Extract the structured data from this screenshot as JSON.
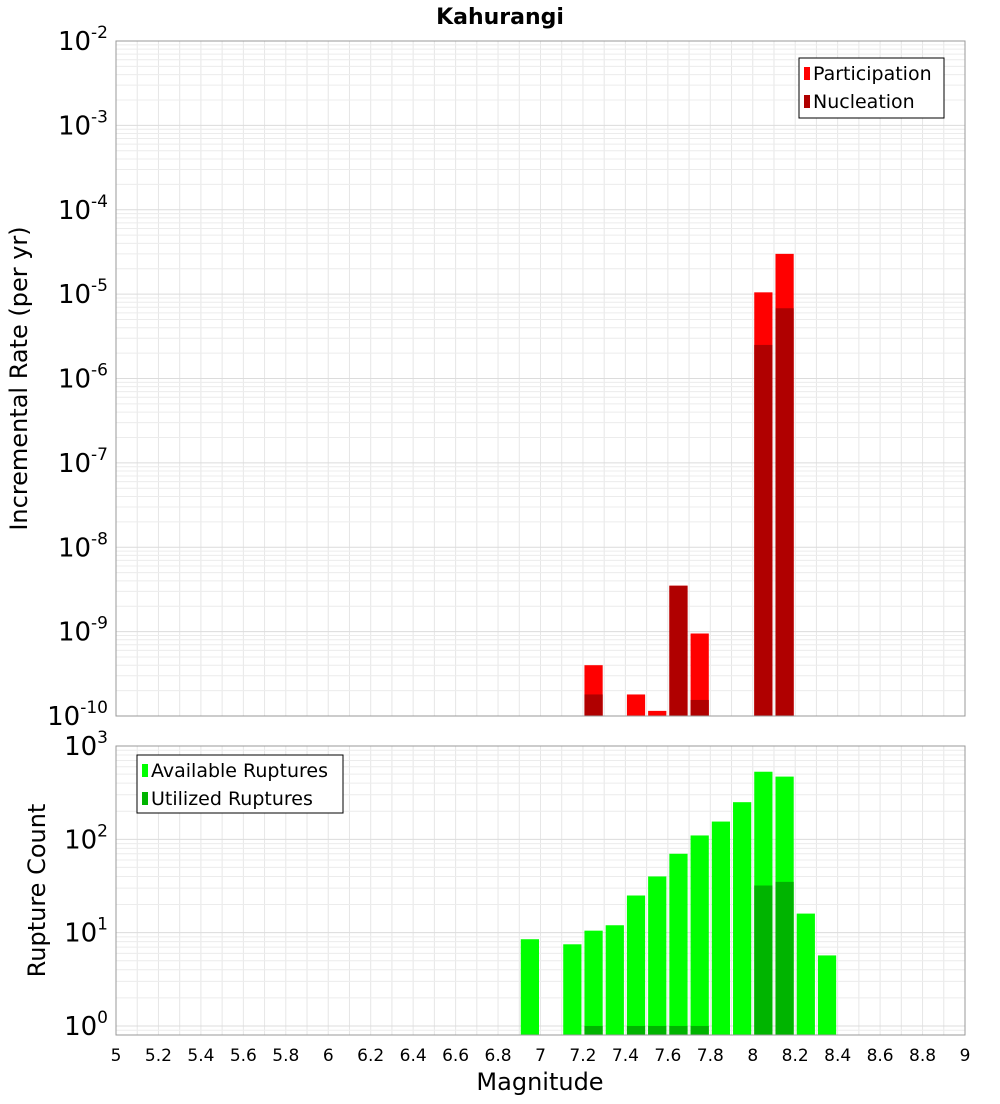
{
  "chart_data": [
    {
      "type": "bar",
      "title": "Kahurangi",
      "ylabel": "Incremental Rate (per yr)",
      "xlabel": "",
      "yscale": "log",
      "ylim": [
        1e-10,
        0.01
      ],
      "xlim": [
        5,
        9
      ],
      "grid": true,
      "legend": "top-right",
      "y_ticks": [
        {
          "base": "10",
          "exp": "-10",
          "v": 1e-10
        },
        {
          "base": "10",
          "exp": "-9",
          "v": 1e-09
        },
        {
          "base": "10",
          "exp": "-8",
          "v": 1e-08
        },
        {
          "base": "10",
          "exp": "-7",
          "v": 1e-07
        },
        {
          "base": "10",
          "exp": "-6",
          "v": 1e-06
        },
        {
          "base": "10",
          "exp": "-5",
          "v": 1e-05
        },
        {
          "base": "10",
          "exp": "-4",
          "v": 0.0001
        },
        {
          "base": "10",
          "exp": "-3",
          "v": 0.001
        },
        {
          "base": "10",
          "exp": "-2",
          "v": 0.01
        }
      ],
      "series": [
        {
          "name": "Participation",
          "color": "#ff0000",
          "x": [
            7.25,
            7.45,
            7.55,
            7.65,
            7.75,
            8.05,
            8.15
          ],
          "values": [
            4e-10,
            1.8e-10,
            1.15e-10,
            3.5e-09,
            9.5e-10,
            1.05e-05,
            3e-05
          ]
        },
        {
          "name": "Nucleation",
          "color": "#b00000",
          "x": [
            7.25,
            7.65,
            7.75,
            8.05,
            8.15
          ],
          "values": [
            1.8e-10,
            3.5e-09,
            1.55e-10,
            2.5e-06,
            6.8e-06
          ]
        }
      ]
    },
    {
      "type": "bar",
      "title": "",
      "ylabel": "Rupture Count",
      "xlabel": "Magnitude",
      "yscale": "log",
      "ylim": [
        0.8,
        1000
      ],
      "xlim": [
        5,
        9
      ],
      "grid": true,
      "legend": "top-left",
      "x_ticks": [
        "5",
        "5.2",
        "5.4",
        "5.6",
        "5.8",
        "6",
        "6.2",
        "6.4",
        "6.6",
        "6.8",
        "7",
        "7.2",
        "7.4",
        "7.6",
        "7.8",
        "8",
        "8.2",
        "8.4",
        "8.6",
        "8.8",
        "9"
      ],
      "y_ticks": [
        {
          "base": "10",
          "exp": "0",
          "v": 1
        },
        {
          "base": "10",
          "exp": "1",
          "v": 10
        },
        {
          "base": "10",
          "exp": "2",
          "v": 100
        },
        {
          "base": "10",
          "exp": "3",
          "v": 1000
        }
      ],
      "series": [
        {
          "name": "Available Ruptures",
          "color": "#00ff00",
          "x": [
            6.95,
            7.15,
            7.25,
            7.35,
            7.45,
            7.55,
            7.65,
            7.75,
            7.85,
            7.95,
            8.05,
            8.15,
            8.25,
            8.35
          ],
          "values": [
            8.5,
            7.5,
            10.5,
            12,
            25,
            40,
            70,
            110,
            155,
            250,
            530,
            470,
            16,
            5.7
          ]
        },
        {
          "name": "Utilized Ruptures",
          "color": "#00b400",
          "x": [
            7.25,
            7.45,
            7.55,
            7.65,
            7.75,
            8.05,
            8.15
          ],
          "values": [
            1,
            1,
            1,
            1,
            1,
            32,
            35
          ]
        }
      ]
    }
  ]
}
